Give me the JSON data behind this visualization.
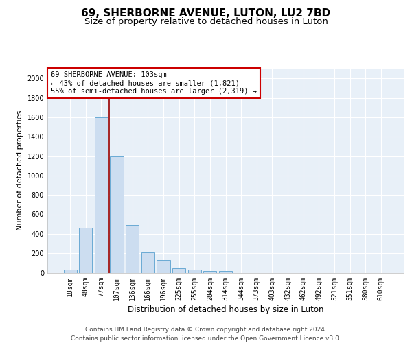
{
  "title1": "69, SHERBORNE AVENUE, LUTON, LU2 7BD",
  "title2": "Size of property relative to detached houses in Luton",
  "xlabel": "Distribution of detached houses by size in Luton",
  "ylabel": "Number of detached properties",
  "bar_color": "#ccddf0",
  "bar_edge_color": "#6aaad4",
  "background_color": "#e8f0f8",
  "grid_color": "#ffffff",
  "categories": [
    "18sqm",
    "48sqm",
    "77sqm",
    "107sqm",
    "136sqm",
    "166sqm",
    "196sqm",
    "225sqm",
    "255sqm",
    "284sqm",
    "314sqm",
    "344sqm",
    "373sqm",
    "403sqm",
    "432sqm",
    "462sqm",
    "492sqm",
    "521sqm",
    "551sqm",
    "580sqm",
    "610sqm"
  ],
  "values": [
    32,
    460,
    1600,
    1200,
    490,
    210,
    130,
    45,
    30,
    20,
    15,
    0,
    0,
    0,
    0,
    0,
    0,
    0,
    0,
    0,
    0
  ],
  "ylim": [
    0,
    2100
  ],
  "yticks": [
    0,
    200,
    400,
    600,
    800,
    1000,
    1200,
    1400,
    1600,
    1800,
    2000
  ],
  "vline_color": "#990000",
  "annotation_text": "69 SHERBORNE AVENUE: 103sqm\n← 43% of detached houses are smaller (1,821)\n55% of semi-detached houses are larger (2,319) →",
  "annotation_box_color": "#ffffff",
  "annotation_box_edge": "#cc0000",
  "footer": "Contains HM Land Registry data © Crown copyright and database right 2024.\nContains public sector information licensed under the Open Government Licence v3.0.",
  "title1_fontsize": 11,
  "title2_fontsize": 9.5,
  "xlabel_fontsize": 8.5,
  "ylabel_fontsize": 8,
  "tick_fontsize": 7,
  "annotation_fontsize": 7.5,
  "footer_fontsize": 6.5
}
